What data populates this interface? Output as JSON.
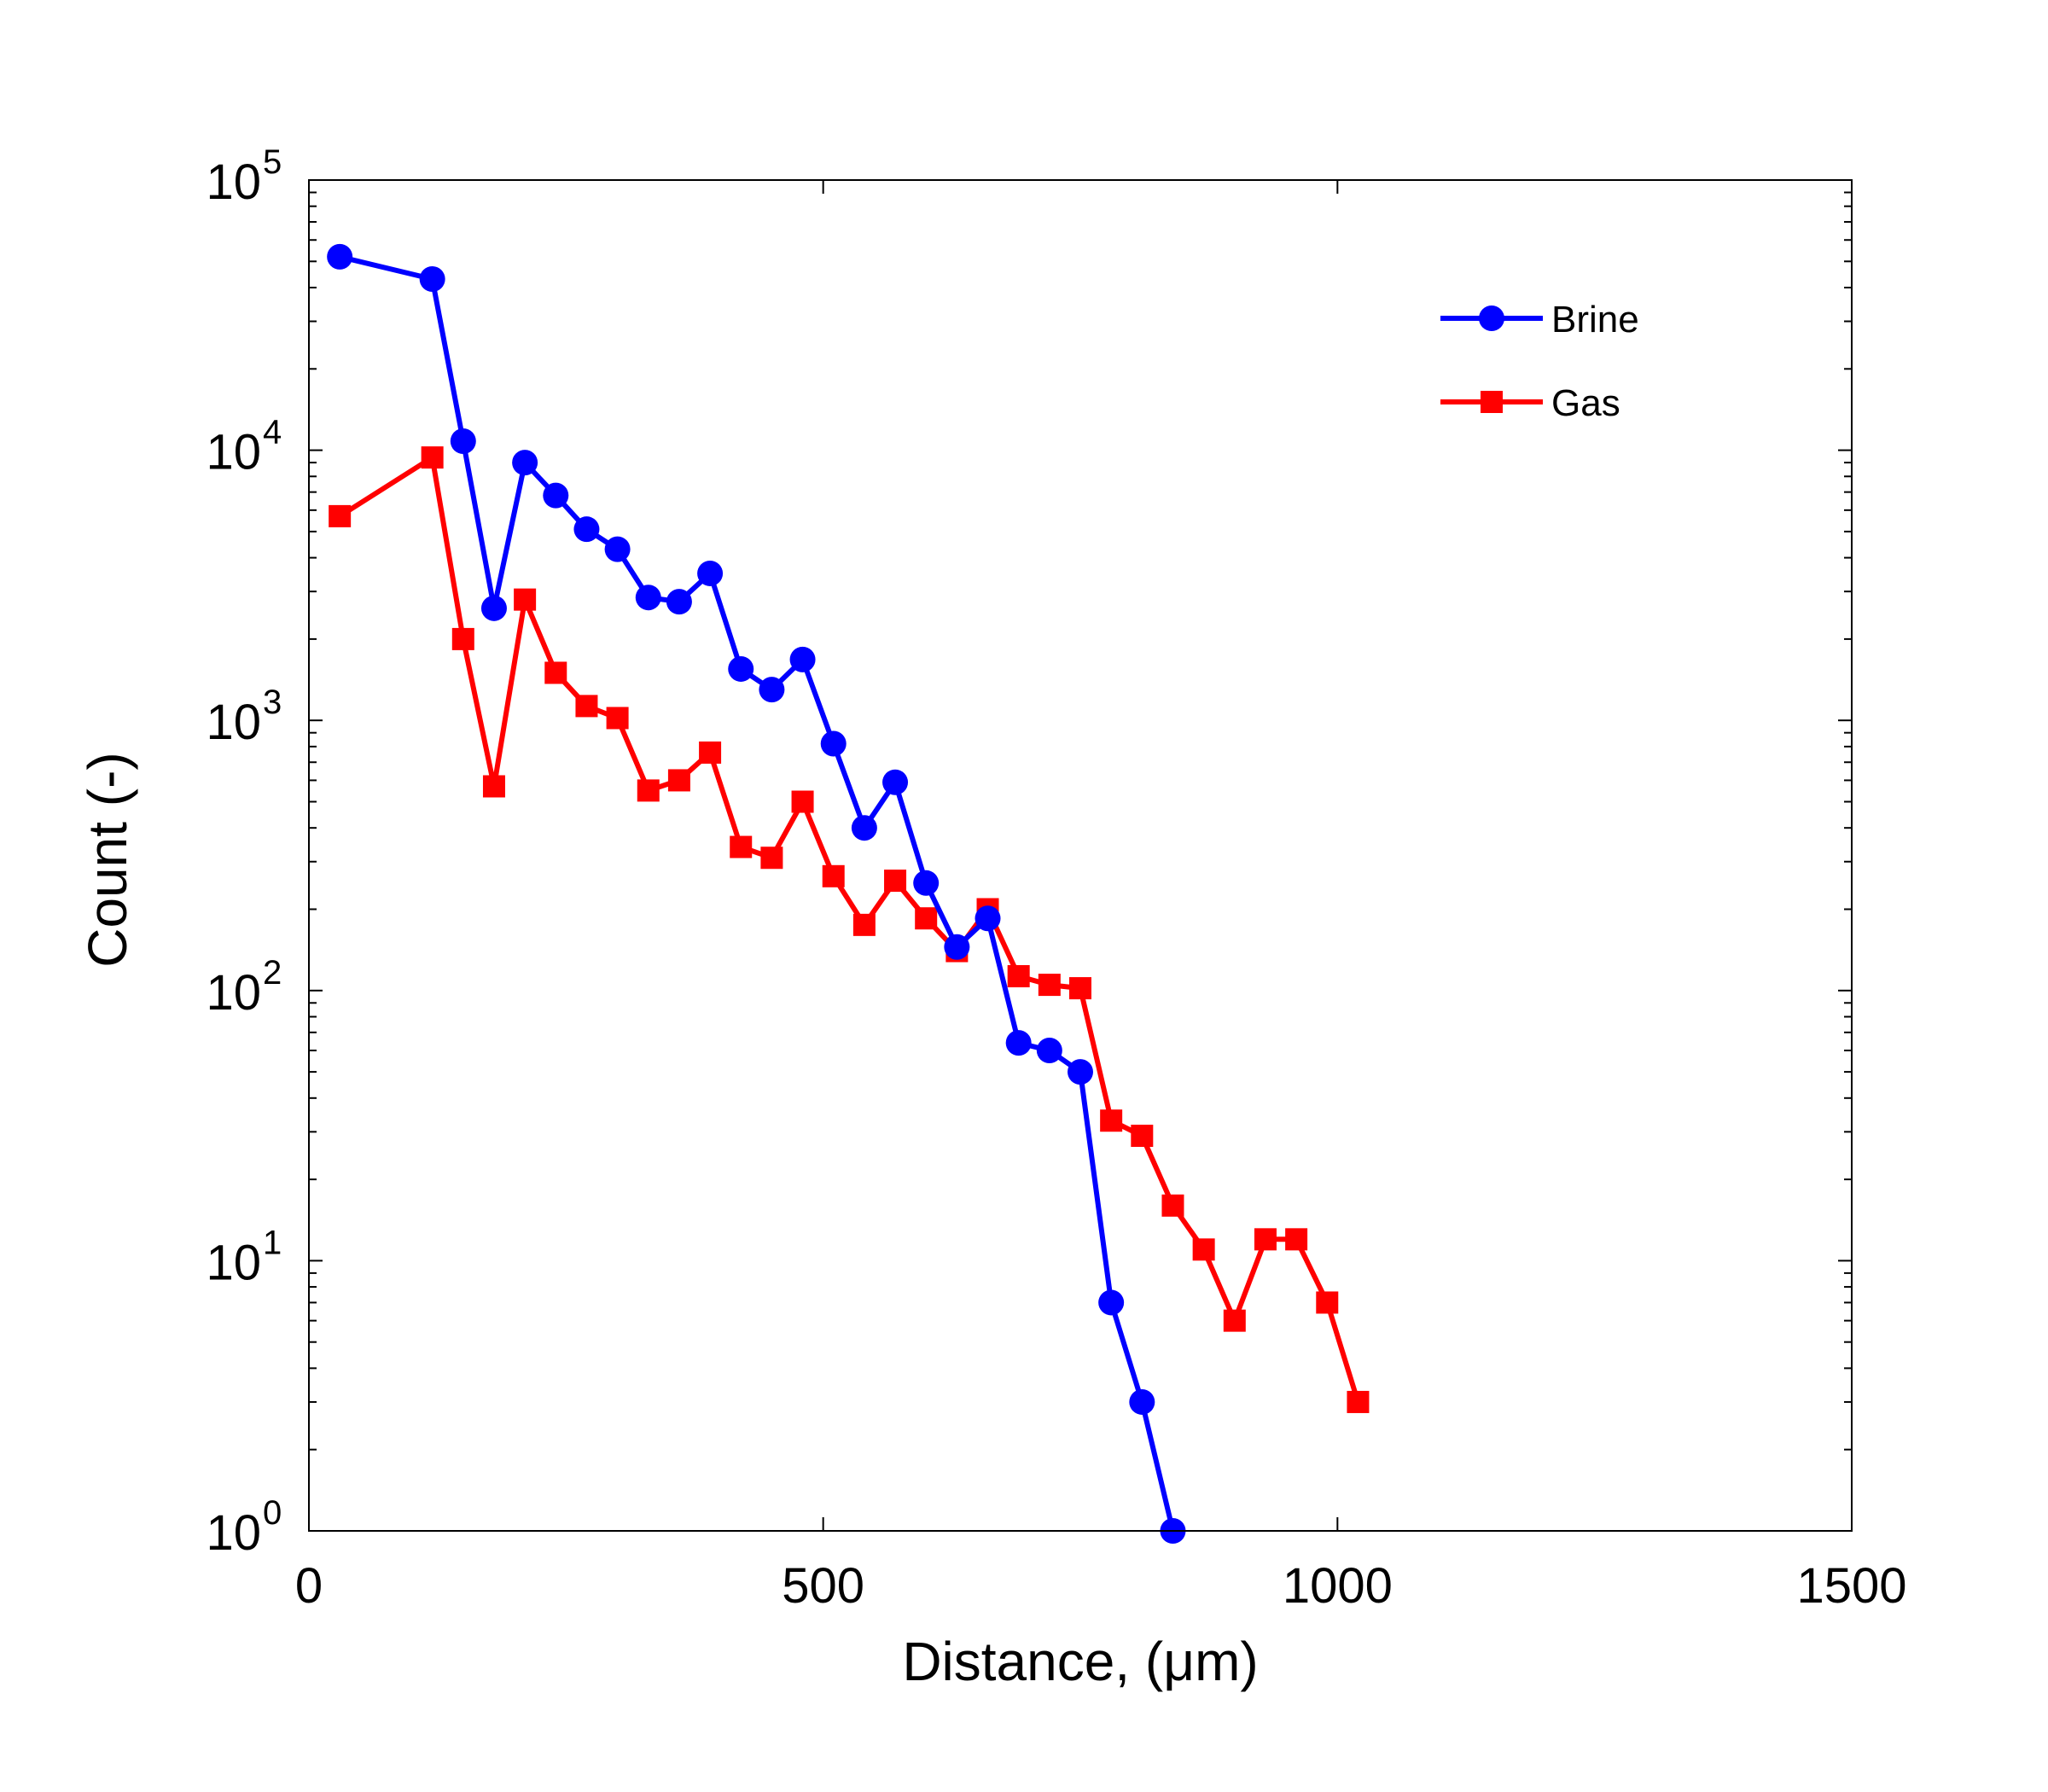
{
  "chart_data": {
    "type": "line",
    "title": "",
    "xlabel": "Distance, (μm)",
    "ylabel": "Count (-)",
    "xlim": [
      0,
      1500
    ],
    "ylim": [
      1,
      100000
    ],
    "y_scale": "log",
    "grid": false,
    "legend_position": "top-right",
    "x_ticks": [
      "0",
      "500",
      "1000",
      "1500"
    ],
    "y_ticks": [
      {
        "base": "10",
        "exp": "0"
      },
      {
        "base": "10",
        "exp": "1"
      },
      {
        "base": "10",
        "exp": "2"
      },
      {
        "base": "10",
        "exp": "3"
      },
      {
        "base": "10",
        "exp": "4"
      },
      {
        "base": "10",
        "exp": "5"
      }
    ],
    "series": [
      {
        "name": "Brine",
        "color": "#0000ff",
        "marker": "circle",
        "x": [
          30,
          120,
          150,
          180,
          210,
          240,
          270,
          300,
          330,
          360,
          390,
          420,
          450,
          480,
          510,
          540,
          570,
          600,
          630,
          660,
          690,
          720,
          750,
          780,
          810,
          840
        ],
        "y": [
          52000,
          43000,
          10800,
          2600,
          9000,
          6800,
          5100,
          4300,
          2850,
          2750,
          3500,
          1550,
          1300,
          1680,
          820,
          400,
          590,
          250,
          145,
          185,
          64,
          60,
          50,
          7,
          3,
          1
        ]
      },
      {
        "name": "Gas",
        "color": "#ff0000",
        "marker": "square",
        "x": [
          30,
          120,
          150,
          180,
          210,
          240,
          270,
          300,
          330,
          360,
          390,
          420,
          450,
          480,
          510,
          540,
          570,
          600,
          630,
          660,
          690,
          720,
          750,
          780,
          810,
          840,
          870,
          900,
          930,
          960,
          990,
          1020
        ],
        "y": [
          5700,
          9400,
          2000,
          570,
          2800,
          1500,
          1130,
          1020,
          550,
          600,
          760,
          340,
          310,
          500,
          265,
          175,
          255,
          185,
          140,
          200,
          113,
          105,
          102,
          33,
          29,
          16,
          11,
          6,
          12,
          12,
          7,
          3
        ]
      }
    ]
  }
}
